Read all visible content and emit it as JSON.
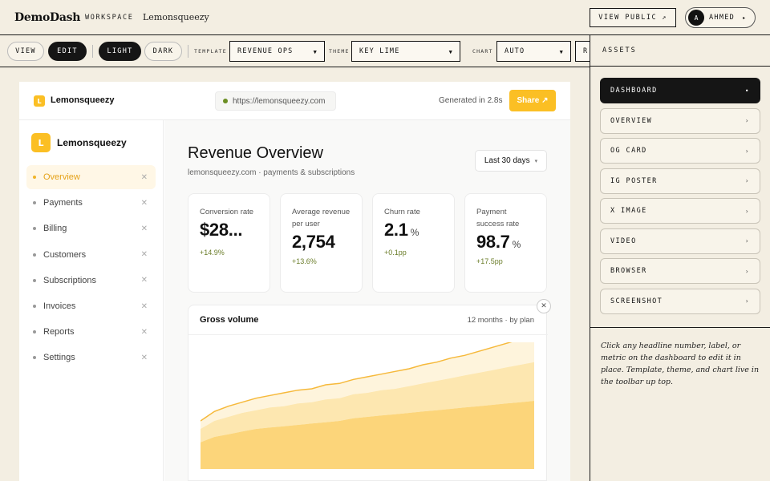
{
  "app": {
    "brand": "DemoDash",
    "workspace_label": "WORKSPACE",
    "workspace_name": "Lemonsqueezy",
    "view_public": "VIEW PUBLIC",
    "user_initial": "A",
    "user_name": "AHMED"
  },
  "toolbar": {
    "view": "VIEW",
    "edit": "EDIT",
    "light": "LIGHT",
    "dark": "DARK",
    "template_label": "TEMPLATE",
    "template_value": "REVENUE OPS",
    "theme_label": "THEME",
    "theme_value": "KEY LIME",
    "chart_label": "CHART",
    "chart_value": "AUTO",
    "overflow_text": "R"
  },
  "assets": {
    "title": "ASSETS",
    "items": [
      {
        "label": "DASHBOARD",
        "active": true
      },
      {
        "label": "OVERVIEW"
      },
      {
        "label": "OG CARD"
      },
      {
        "label": "IG POSTER"
      },
      {
        "label": "X IMAGE"
      },
      {
        "label": "VIDEO"
      },
      {
        "label": "BROWSER"
      },
      {
        "label": "SCREENSHOT"
      }
    ],
    "note": "Click any headline number, label, or metric on the dashboard to edit it in place. Template, theme, and chart live in the toolbar up top."
  },
  "preview": {
    "logo_letter": "L",
    "brand": "Lemonsqueezy",
    "url": "https://lemonsqueezy.com",
    "generated": "Generated in 2.8s",
    "share": "Share ↗",
    "sidebar": {
      "logo_letter": "L",
      "brand": "Lemonsqueezy",
      "items": [
        {
          "label": "Overview",
          "active": true
        },
        {
          "label": "Payments"
        },
        {
          "label": "Billing"
        },
        {
          "label": "Customers"
        },
        {
          "label": "Subscriptions"
        },
        {
          "label": "Invoices"
        },
        {
          "label": "Reports"
        },
        {
          "label": "Settings"
        }
      ]
    },
    "title": "Revenue Overview",
    "subtitle": "lemonsqueezy.com · payments & subscriptions",
    "range": "Last 30 days",
    "kpis": [
      {
        "label": "Conversion rate",
        "value": "$28...",
        "unit": "",
        "delta": "+14.9%"
      },
      {
        "label": "Average revenue per user",
        "value": "2,754",
        "unit": "",
        "delta": "+13.6%"
      },
      {
        "label": "Churn rate",
        "value": "2.1",
        "unit": "%",
        "delta": "+0.1pp"
      },
      {
        "label": "Payment success rate",
        "value": "98.7",
        "unit": "%",
        "delta": "+17.5pp"
      }
    ],
    "volume": {
      "title": "Gross volume",
      "meta": "12 months · by plan"
    }
  },
  "colors": {
    "accent": "#fbbf24",
    "area_base": "#fcd57a",
    "area_mid": "#fde7b0",
    "area_top": "#fef4dc",
    "line": "#f6b93b"
  },
  "chart_data": {
    "type": "area",
    "x": [
      1,
      2,
      3,
      4,
      5,
      6,
      7,
      8,
      9,
      10,
      11,
      12,
      13,
      14,
      15,
      16,
      17,
      18,
      19,
      20,
      21,
      22,
      23,
      24,
      25
    ],
    "series": [
      {
        "values": [
          20,
          24,
          26,
          28,
          30,
          31,
          32,
          33,
          34,
          35,
          36,
          38,
          39,
          40,
          41,
          42,
          43,
          44,
          45,
          46,
          47,
          48,
          49,
          50,
          51
        ]
      },
      {
        "values": [
          10,
          12,
          13,
          14,
          14,
          15,
          15,
          16,
          16,
          17,
          17,
          18,
          18,
          19,
          19,
          20,
          21,
          22,
          23,
          24,
          25,
          26,
          27,
          28,
          29
        ]
      },
      {
        "values": [
          6,
          7,
          8,
          8,
          9,
          9,
          10,
          10,
          10,
          11,
          11,
          11,
          12,
          12,
          13,
          13,
          14,
          14,
          15,
          15,
          16,
          17,
          18,
          19,
          20
        ]
      }
    ],
    "ylim": [
      0,
      90
    ]
  }
}
